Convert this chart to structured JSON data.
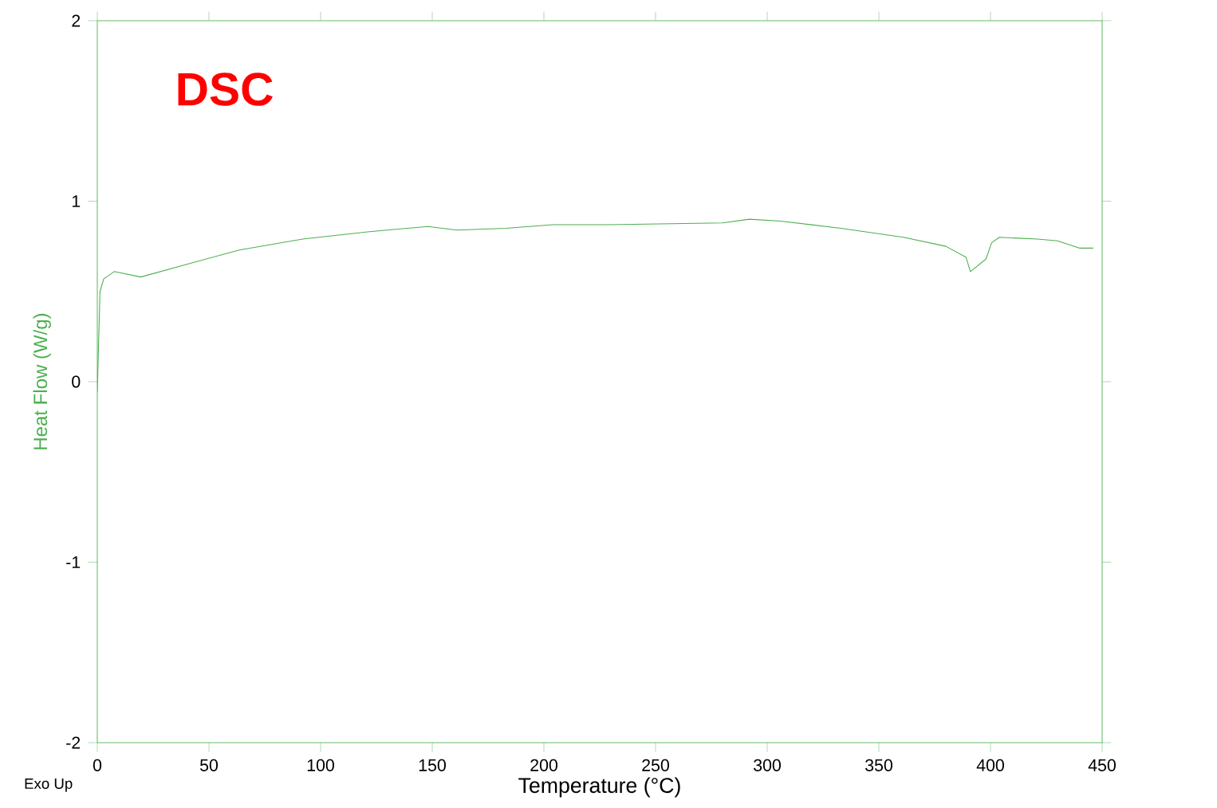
{
  "chart_data": {
    "type": "line",
    "title": "DSC",
    "xlabel": "Temperature (°C)",
    "ylabel": "Heat Flow (W/g)",
    "annotations": [
      "Exo Up"
    ],
    "x": [
      0,
      1.2,
      2.9,
      7.6,
      19.5,
      40,
      63.6,
      92,
      121,
      148,
      161,
      183,
      204,
      228,
      280,
      292,
      306,
      333,
      361,
      380,
      389,
      391,
      398,
      400.5,
      404,
      421,
      430,
      440,
      446
    ],
    "values": [
      -0.06,
      0.5,
      0.57,
      0.61,
      0.58,
      0.65,
      0.73,
      0.79,
      0.83,
      0.86,
      0.84,
      0.85,
      0.87,
      0.87,
      0.88,
      0.9,
      0.89,
      0.85,
      0.8,
      0.75,
      0.69,
      0.61,
      0.68,
      0.77,
      0.8,
      0.79,
      0.78,
      0.74,
      0.74
    ],
    "color": "#4caf50",
    "xlim": [
      0,
      450
    ],
    "ylim": [
      -2,
      2
    ],
    "xticks": [
      0,
      50,
      100,
      150,
      200,
      250,
      300,
      350,
      400,
      450
    ],
    "yticks": [
      -2,
      -1,
      0,
      1,
      2
    ]
  }
}
